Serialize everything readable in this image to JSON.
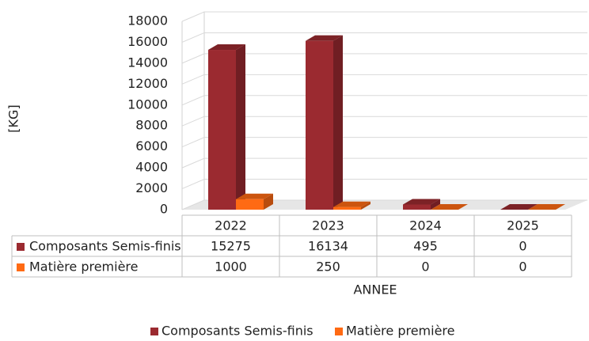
{
  "chart_data": {
    "type": "bar3d",
    "ylabel": "[KG]",
    "xlabel": "ANNEE",
    "categories": [
      "2022",
      "2023",
      "2024",
      "2025"
    ],
    "series": [
      {
        "name": "Composants Semis-finis",
        "color": "#9b2a30",
        "values": [
          15275,
          16134,
          495,
          0
        ]
      },
      {
        "name": "Matière première",
        "color": "#ff6a13",
        "values": [
          1000,
          250,
          0,
          0
        ]
      }
    ],
    "ylim": [
      0,
      18000
    ],
    "yticks": [
      0,
      2000,
      4000,
      6000,
      8000,
      10000,
      12000,
      14000,
      16000,
      18000
    ],
    "grid": true,
    "legend": "bottom"
  }
}
